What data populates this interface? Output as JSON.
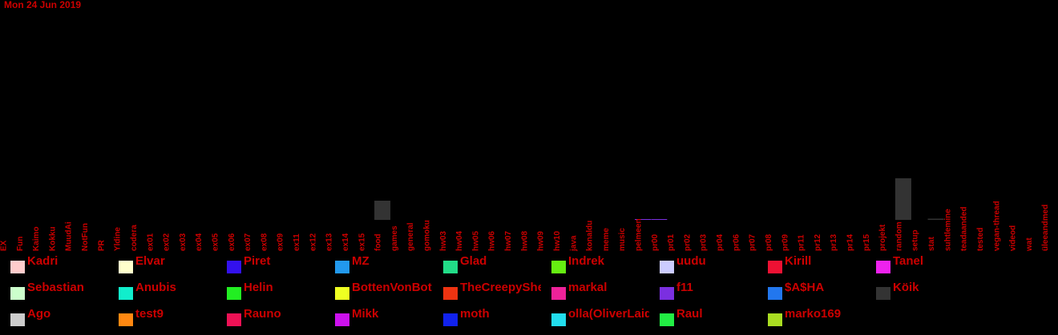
{
  "date": "Mon 24 Jun 2019",
  "colors": {
    "background": "#000000",
    "text": "#cc0000"
  },
  "chart_data": {
    "type": "bar",
    "categories": [
      "EX",
      "Fun",
      "Kaimo",
      "Kokku",
      "MuudAi",
      "NotFun",
      "PR",
      "Yldine",
      "codera",
      "ex01",
      "ex02",
      "ex03",
      "ex04",
      "ex05",
      "ex06",
      "ex07",
      "ex08",
      "ex09",
      "ex11",
      "ex12",
      "ex13",
      "ex14",
      "ex15",
      "food",
      "games",
      "general",
      "gomoku",
      "hw03",
      "hw04",
      "hw05",
      "hw06",
      "hw07",
      "hw08",
      "hw09",
      "hw10",
      "java",
      "konaldu",
      "meme",
      "music",
      "pelmeen",
      "pr00",
      "pr01",
      "pr02",
      "pr03",
      "pr04",
      "pr06",
      "pr07",
      "pr08",
      "pr09",
      "pr11",
      "pr12",
      "pr13",
      "pr14",
      "pr15",
      "projekt",
      "random",
      "setup",
      "stat",
      "suhtlemine",
      "teadaanded",
      "tested",
      "vegan-thread",
      "videod",
      "wat",
      "üleeandmed"
    ],
    "series": [
      {
        "name": "Köik",
        "color": "#333333",
        "values": [
          0,
          0,
          0,
          0,
          0,
          0,
          0,
          0,
          0,
          0,
          0,
          0,
          0,
          0,
          0,
          0,
          0,
          0,
          0,
          0,
          0,
          0,
          0,
          24,
          0,
          0,
          0,
          0,
          0,
          0,
          0,
          0,
          0,
          0,
          0,
          0,
          0,
          0,
          0,
          0,
          0,
          0,
          0,
          0,
          0,
          0,
          0,
          0,
          0,
          0,
          0,
          0,
          0,
          0,
          0,
          52,
          0,
          1.5,
          0,
          0,
          0,
          0,
          0,
          0,
          0
        ]
      },
      {
        "name": "f11",
        "color": "#7b2fe0",
        "values": [
          0,
          0,
          0,
          0,
          0,
          0,
          0,
          0,
          0,
          0,
          0,
          0,
          0,
          0,
          0,
          0,
          0,
          0,
          0,
          0,
          0,
          0,
          0,
          0,
          0,
          0,
          0,
          0,
          0,
          0,
          0,
          0,
          0,
          0,
          0,
          0,
          0,
          0,
          0,
          1,
          1,
          0,
          0,
          0,
          0,
          0,
          0,
          0,
          0,
          0,
          0,
          0,
          0,
          0,
          0,
          0,
          0,
          0,
          0,
          0,
          0,
          0,
          0,
          0,
          0
        ]
      }
    ],
    "legend": [
      {
        "name": "Kadri",
        "color": "#ffcccc"
      },
      {
        "name": "Elvar",
        "color": "#ffffcc"
      },
      {
        "name": "Piret",
        "color": "#3311ee"
      },
      {
        "name": "MZ",
        "color": "#2299ee"
      },
      {
        "name": "Glad",
        "color": "#22dd88"
      },
      {
        "name": "Indrek",
        "color": "#66ee11"
      },
      {
        "name": "uudu",
        "color": "#ccccff"
      },
      {
        "name": "Kirill",
        "color": "#ee1133"
      },
      {
        "name": "Tanel",
        "color": "#ee22ee"
      },
      {
        "name": "Sebastian",
        "color": "#ccffcc"
      },
      {
        "name": "Anubis",
        "color": "#11eecc"
      },
      {
        "name": "Helin",
        "color": "#22ee22"
      },
      {
        "name": "BottenVonBot",
        "color": "#eeff22"
      },
      {
        "name": "TheCreepyShe",
        "color": "#ee3311"
      },
      {
        "name": "markal",
        "color": "#ee2299"
      },
      {
        "name": "f11",
        "color": "#7b2fe0"
      },
      {
        "name": "$A$HA",
        "color": "#2277ee"
      },
      {
        "name": "Köik",
        "color": "#333333"
      },
      {
        "name": "Ago",
        "color": "#cccccc"
      },
      {
        "name": "test9",
        "color": "#ff8811"
      },
      {
        "name": "Rauno",
        "color": "#ee1155"
      },
      {
        "name": "Mikk",
        "color": "#cc11ee"
      },
      {
        "name": "moth",
        "color": "#1122ee"
      },
      {
        "name": "olla(OliverLaid",
        "color": "#22ddee"
      },
      {
        "name": "Raul",
        "color": "#22ee44"
      },
      {
        "name": "marko169",
        "color": "#aadd22"
      }
    ]
  }
}
